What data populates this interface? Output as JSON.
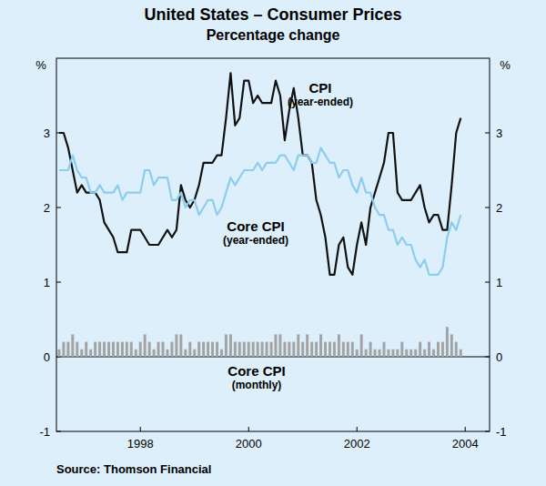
{
  "chart_data": {
    "type": "line",
    "title": "United States – Consumer Prices",
    "subtitle": "Percentage change",
    "ylabel": "%",
    "source": "Source: Thomson Financial",
    "x": [
      1997,
      1997.083,
      1997.167,
      1997.25,
      1997.333,
      1997.417,
      1997.5,
      1997.583,
      1997.667,
      1997.75,
      1997.833,
      1997.917,
      1998,
      1998.083,
      1998.167,
      1998.25,
      1998.333,
      1998.417,
      1998.5,
      1998.583,
      1998.667,
      1998.75,
      1998.833,
      1998.917,
      1999,
      1999.083,
      1999.167,
      1999.25,
      1999.333,
      1999.417,
      1999.5,
      1999.583,
      1999.667,
      1999.75,
      1999.833,
      1999.917,
      2000,
      2000.083,
      2000.167,
      2000.25,
      2000.333,
      2000.417,
      2000.5,
      2000.583,
      2000.667,
      2000.75,
      2000.833,
      2000.917,
      2001,
      2001.083,
      2001.167,
      2001.25,
      2001.333,
      2001.417,
      2001.5,
      2001.583,
      2001.667,
      2001.75,
      2001.833,
      2001.917,
      2002,
      2002.083,
      2002.167,
      2002.25,
      2002.333,
      2002.417,
      2002.5,
      2002.583,
      2002.667,
      2002.75,
      2002.833,
      2002.917,
      2003,
      2003.083,
      2003.167,
      2003.25,
      2003.333,
      2003.417,
      2003.5,
      2003.583,
      2003.667,
      2003.75,
      2003.833,
      2003.917,
      2004,
      2004.083,
      2004.167,
      2004.25,
      2004.333,
      2004.417
    ],
    "series": [
      {
        "name": "Core CPI (monthly)",
        "type": "bar",
        "color": "#a3a3a3",
        "values": [
          0.1,
          0.2,
          0.2,
          0.3,
          0.2,
          0.1,
          0.2,
          0.1,
          0.2,
          0.2,
          0.2,
          0.2,
          0.2,
          0.2,
          0.2,
          0.2,
          0.2,
          0.1,
          0.2,
          0.3,
          0.2,
          0.1,
          0.2,
          0.2,
          0.1,
          0.2,
          0.3,
          0.3,
          0.1,
          0.2,
          0.1,
          0.2,
          0.2,
          0.2,
          0.2,
          0.2,
          0.1,
          0.3,
          0.3,
          0.2,
          0.2,
          0.2,
          0.2,
          0.2,
          0.2,
          0.2,
          0.2,
          0.2,
          0.3,
          0.3,
          0.2,
          0.2,
          0.2,
          0.3,
          0.2,
          0.3,
          0.2,
          0.2,
          0.3,
          0.2,
          0.2,
          0.2,
          0.3,
          0.2,
          0.2,
          0.2,
          0.1,
          0.3,
          0.1,
          0.2,
          0.1,
          0.1,
          0.2,
          0.1,
          0.1,
          0.1,
          0.2,
          0.1,
          0.1,
          0.1,
          0.2,
          0.1,
          0.2,
          0.1,
          0.2,
          0.2,
          0.4,
          0.3,
          0.2,
          0.1
        ]
      },
      {
        "name": "CPI (year-ended)",
        "type": "line",
        "color": "#111111",
        "values": [
          3.0,
          3.0,
          2.8,
          2.5,
          2.2,
          2.3,
          2.2,
          2.2,
          2.2,
          2.1,
          1.8,
          1.7,
          1.6,
          1.4,
          1.4,
          1.4,
          1.7,
          1.7,
          1.7,
          1.6,
          1.5,
          1.5,
          1.5,
          1.6,
          1.7,
          1.6,
          1.7,
          2.3,
          2.1,
          2.0,
          2.1,
          2.3,
          2.6,
          2.6,
          2.6,
          2.7,
          2.7,
          3.2,
          3.8,
          3.1,
          3.2,
          3.7,
          3.7,
          3.4,
          3.5,
          3.4,
          3.4,
          3.4,
          3.7,
          3.5,
          2.9,
          3.3,
          3.6,
          3.2,
          2.7,
          2.7,
          2.6,
          2.1,
          1.9,
          1.6,
          1.1,
          1.1,
          1.5,
          1.6,
          1.2,
          1.1,
          1.5,
          1.8,
          1.5,
          2.0,
          2.2,
          2.4,
          2.6,
          3.0,
          3.0,
          2.2,
          2.1,
          2.1,
          2.1,
          2.2,
          2.3,
          2.0,
          1.8,
          1.9,
          1.9,
          1.7,
          1.7,
          2.3,
          3.0,
          3.2
        ]
      },
      {
        "name": "Core CPI (year-ended)",
        "type": "line",
        "color": "#8ccdee",
        "values": [
          2.5,
          2.5,
          2.5,
          2.7,
          2.5,
          2.4,
          2.4,
          2.2,
          2.2,
          2.3,
          2.2,
          2.2,
          2.2,
          2.3,
          2.1,
          2.2,
          2.2,
          2.2,
          2.2,
          2.5,
          2.5,
          2.3,
          2.4,
          2.4,
          2.4,
          2.1,
          2.1,
          2.2,
          2.0,
          2.1,
          2.1,
          1.9,
          2.0,
          2.1,
          2.1,
          1.9,
          2.0,
          2.2,
          2.4,
          2.3,
          2.4,
          2.5,
          2.5,
          2.5,
          2.6,
          2.5,
          2.6,
          2.6,
          2.6,
          2.7,
          2.7,
          2.6,
          2.5,
          2.7,
          2.7,
          2.7,
          2.6,
          2.6,
          2.8,
          2.7,
          2.6,
          2.6,
          2.4,
          2.5,
          2.5,
          2.3,
          2.2,
          2.4,
          2.2,
          2.2,
          2.0,
          1.9,
          1.9,
          1.7,
          1.7,
          1.5,
          1.6,
          1.5,
          1.5,
          1.3,
          1.2,
          1.3,
          1.1,
          1.1,
          1.1,
          1.2,
          1.6,
          1.8,
          1.7,
          1.9
        ]
      }
    ],
    "xlim": [
      1996.95,
      2004.95
    ],
    "xticks": [
      {
        "value": 1998.5,
        "label": "1998"
      },
      {
        "value": 2000.5,
        "label": "2000"
      },
      {
        "value": 2002.5,
        "label": "2002"
      },
      {
        "value": 2004.5,
        "label": "2004"
      }
    ],
    "ylim": [
      -1,
      4
    ],
    "yticks": [
      -1,
      0,
      1,
      2,
      3
    ],
    "grid": false
  }
}
